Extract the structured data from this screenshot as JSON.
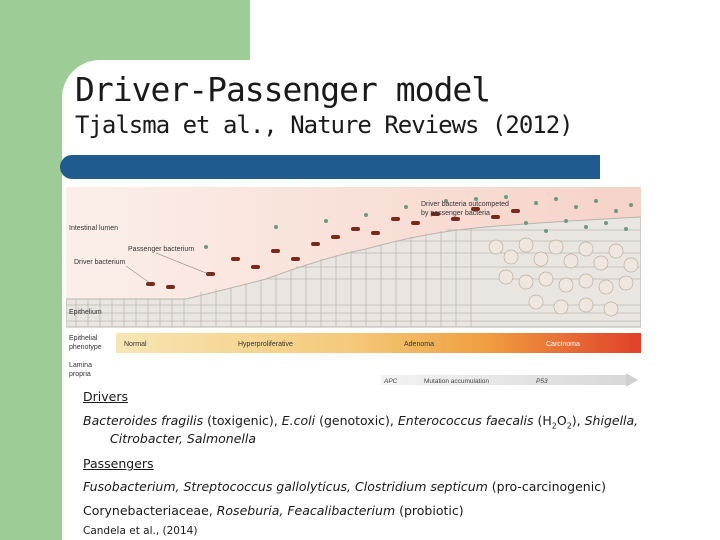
{
  "slide": {
    "title": "Driver-Passenger model",
    "subtitle": "Tjalsma et al., Nature Reviews (2012)"
  },
  "figure": {
    "labels": {
      "intestinal_lumen": "Intestinal lumen",
      "passenger_bacterium": "Passenger bacterium",
      "driver_bacterium": "Driver bacterium",
      "outcompeted": [
        "Driver bacteria outcompeted",
        "by passenger bacteria"
      ],
      "epithelium": "Epithelium",
      "epithelial_phenotype": [
        "Epithelial",
        "phenotype"
      ],
      "lamina_propria": [
        "Lamina",
        "propria"
      ]
    },
    "stages": [
      "Normal",
      "Hyperproliferative",
      "Adenoma",
      "Carcinoma"
    ],
    "mutations": [
      "APC",
      "Mutation accumulation",
      "P53"
    ],
    "colors": {
      "normal": "#f3d7a0",
      "adenoma": "#f0a040",
      "carcinoma": "#e0402a",
      "driver": "#7a2a1a",
      "passenger": "#6a9a80"
    }
  },
  "text": {
    "drivers_heading": "Drivers",
    "drivers_line1": {
      "s1": "Bacteroides fragilis",
      "s2": " (toxigenic), ",
      "s3": "E.coli",
      "s4": " (genotoxic), ",
      "s5": "Enterococcus faecalis",
      "s6": " (H",
      "s6sub": "2",
      "s7": "O",
      "s7sub": "2",
      "s8": "), ",
      "s9": "Shigella,"
    },
    "drivers_line2": "Citrobacter, Salmonella",
    "passengers_heading": "Passengers",
    "passengers_line1": {
      "s1": "Fusobacterium, Streptococcus gallolyticus, Clostridium septicum",
      "s2": " (pro-carcinogenic)"
    },
    "passengers_line2": {
      "s1": "Corynebacteriaceae, ",
      "s2": "Roseburia, Feacalibacterium",
      "s3": " (probiotic)"
    },
    "citation": "Candela et al., (2014)"
  }
}
